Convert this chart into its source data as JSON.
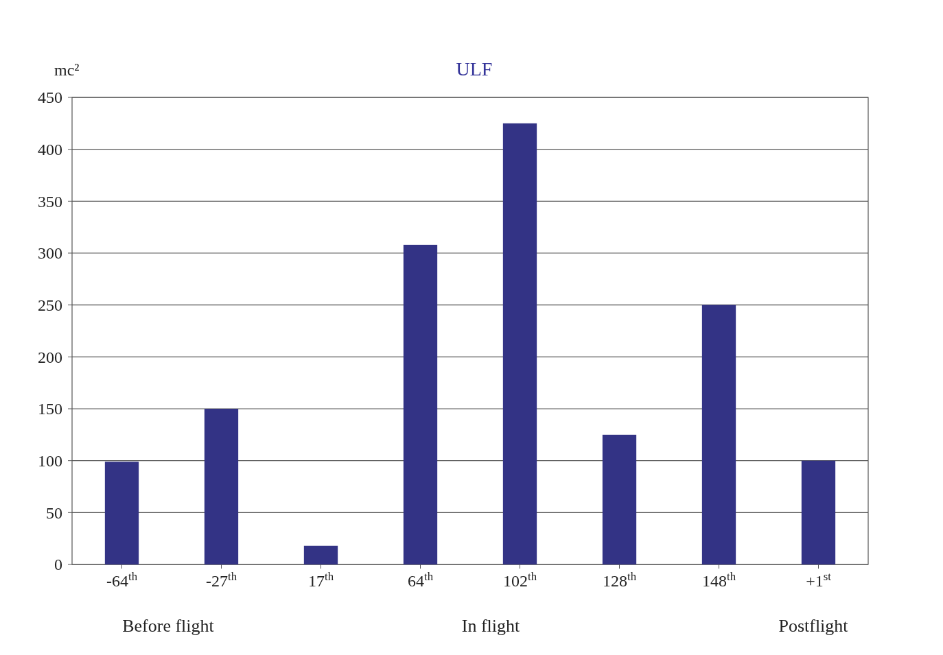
{
  "chart_data": {
    "type": "bar",
    "title": "ULF",
    "ylabel": "mc²",
    "categories": [
      "-64$^{th}$",
      "-27$^{th}$",
      "17$^{th}$",
      "64$^{th}$",
      "102$^{th}$",
      "128$^{th}$",
      "148$^{th}$",
      "+1$^{st}$"
    ],
    "values": [
      99,
      150,
      18,
      308,
      425,
      125,
      250,
      100
    ],
    "color": "#333385",
    "ylim": [
      0,
      450
    ],
    "yticks": [
      0,
      50,
      100,
      150,
      200,
      250,
      300,
      350,
      400,
      450
    ],
    "grid": "y",
    "annotations": [
      "Before flight",
      "In flight",
      "Postflight"
    ]
  }
}
